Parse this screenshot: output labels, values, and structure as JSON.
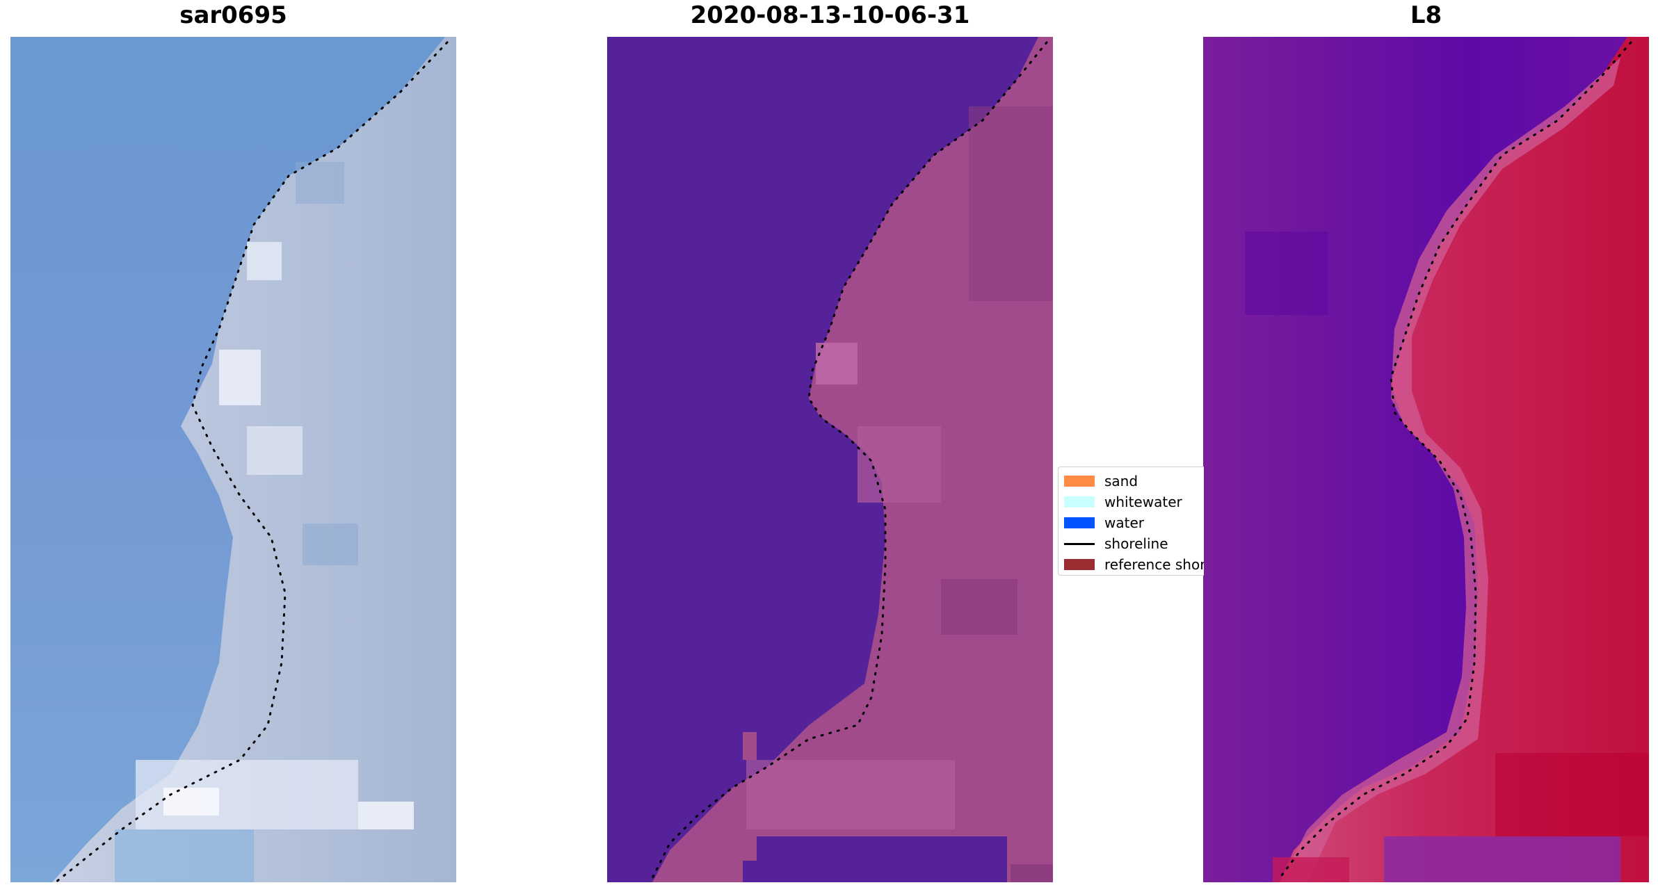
{
  "panels": [
    {
      "title": "sar0695",
      "image_description": "satellite RGB view of coastline, blue water and pale sand"
    },
    {
      "title": "2020-08-13-10-06-31",
      "image_description": "classified image, purple water and pink land"
    },
    {
      "title": "L8",
      "image_description": "false colour index view, violet water and red land"
    }
  ],
  "legend": {
    "items": [
      {
        "label": "sand",
        "kind": "patch",
        "color": "#ff8c42"
      },
      {
        "label": "whitewater",
        "kind": "patch",
        "color": "#c8ffff"
      },
      {
        "label": "water",
        "kind": "patch",
        "color": "#0055ff"
      },
      {
        "label": "shoreline",
        "kind": "line",
        "color": "#000000"
      },
      {
        "label": "reference shoreline",
        "kind": "patch",
        "color": "#9b2c32"
      }
    ]
  },
  "colors": {
    "sar_water": "#6f9bd3",
    "sar_land": "#b7c4dc",
    "class_water": "#55229a",
    "class_land": "#a14a8c",
    "l8_water": "#6a14a0",
    "l8_land": "#c4184f",
    "shoreline_dots": "#000000"
  }
}
